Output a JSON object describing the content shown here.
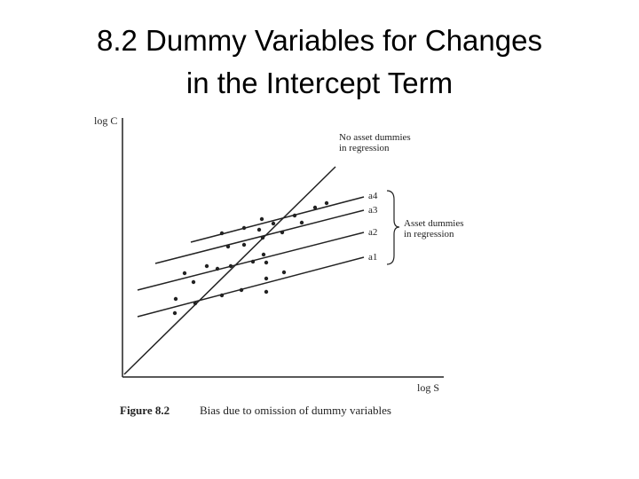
{
  "title": [
    "8.2 Dummy Variables for Changes",
    "in the Intercept Term"
  ],
  "figure": {
    "y_axis_label": "log C",
    "x_axis_label": "log S",
    "pooled_label": [
      "No asset dummies",
      "in regression"
    ],
    "line_labels": [
      "a4",
      "a3",
      "a2",
      "a1"
    ],
    "group_label": [
      "Asset dummies",
      "in regression"
    ],
    "caption_number": "Figure 8.2",
    "caption": "Bias due to omission of dummy variables"
  }
}
